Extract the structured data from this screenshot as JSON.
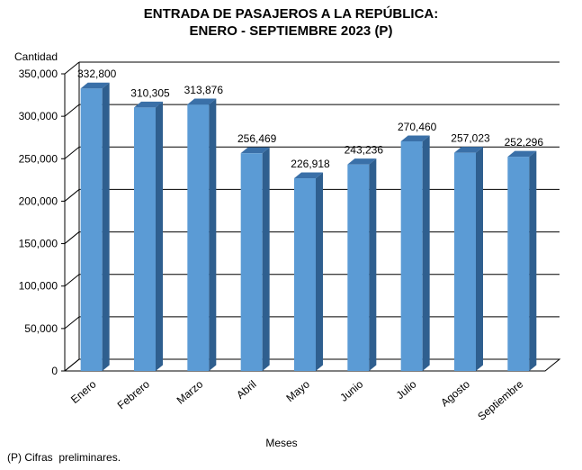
{
  "chart_data": {
    "type": "bar",
    "title_lines": [
      "ENTRADA DE PASAJEROS A LA REPÚBLICA:",
      "ENERO - SEPTIEMBRE 2023 (P)"
    ],
    "ylabel": "Cantidad",
    "xlabel": "Meses",
    "categories": [
      "Enero",
      "Febrero",
      "Marzo",
      "Abril",
      "Mayo",
      "Junio",
      "Julio",
      "Agosto",
      "Septiembre"
    ],
    "values": [
      332800,
      310305,
      313876,
      256469,
      226918,
      243236,
      270460,
      257023,
      252296
    ],
    "data_labels": [
      "332,800",
      "310,305",
      "313,876",
      "256,469",
      "226,918",
      "243,236",
      "270,460",
      "257,023",
      "252,296"
    ],
    "yticks": [
      0,
      50000,
      100000,
      150000,
      200000,
      250000,
      300000,
      350000
    ],
    "ytick_labels": [
      "0",
      "50,000",
      "100,000",
      "150,000",
      "200,000",
      "250,000",
      "300,000",
      "350,000"
    ],
    "ylim": [
      0,
      350000
    ],
    "grid": true,
    "three_d": true,
    "colors": {
      "bar_front": "#5b9bd5",
      "bar_side": "#2f5f8f",
      "bar_top": "#3a70a8",
      "gridline": "#000000"
    }
  },
  "footnote": "(P) Cifras  preliminares."
}
